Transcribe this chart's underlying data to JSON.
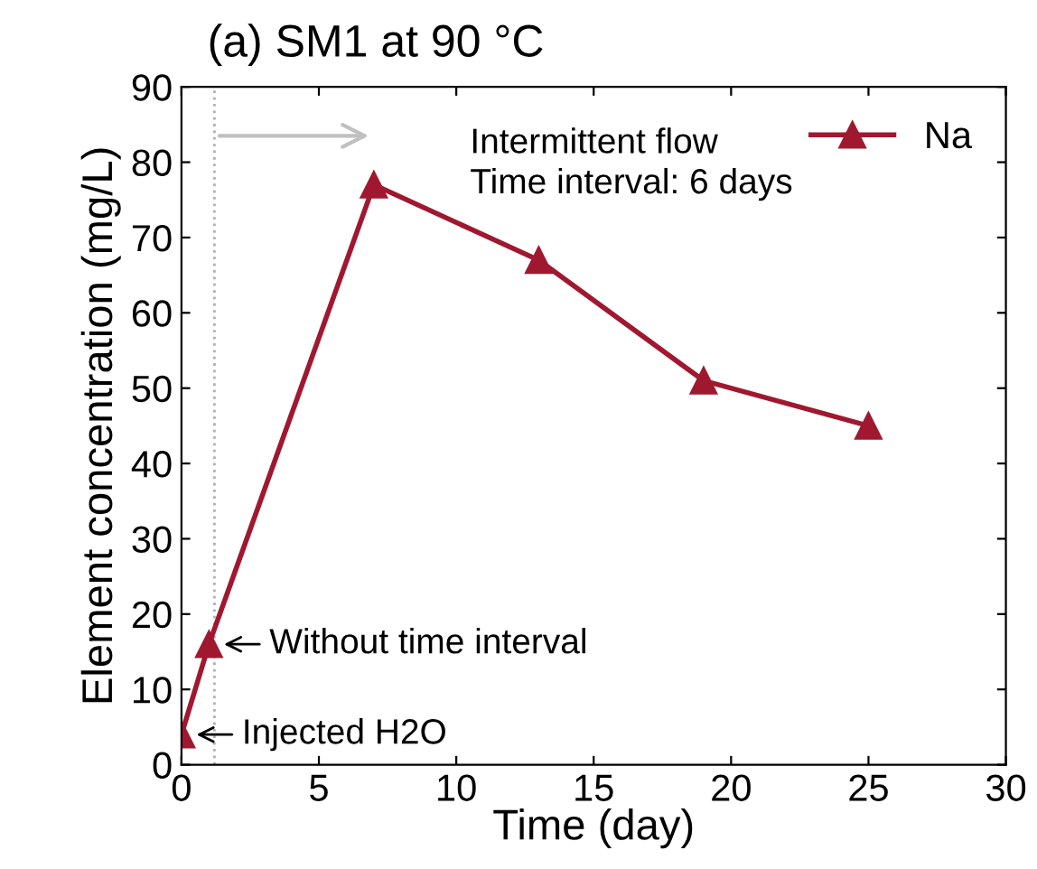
{
  "chart_data": {
    "type": "line",
    "title": "(a) SM1 at 90 °C",
    "xlabel": "Time (day)",
    "ylabel": "Element concentration (mg/L)",
    "x": [
      0,
      1,
      7,
      13,
      19,
      25
    ],
    "series": [
      {
        "name": "Na",
        "color": "#a01830",
        "values": [
          4,
          16,
          77,
          67,
          51,
          45
        ]
      }
    ],
    "xlim": [
      0,
      30
    ],
    "xticks": [
      0,
      5,
      10,
      15,
      20,
      25,
      30
    ],
    "ylim": [
      0,
      90
    ],
    "yticks": [
      0,
      10,
      20,
      30,
      40,
      50,
      60,
      70,
      80,
      90
    ],
    "marker": "triangle",
    "line_style": "solid",
    "legend": "top right",
    "grid": false,
    "ref_lines": [
      {
        "axis": "x",
        "value": 1.2,
        "color": "#b0b0b0",
        "line_style": "dotted"
      }
    ],
    "annotations": [
      "Intermittent flow\nTime interval: 6 days",
      {
        "text": "Without time interval",
        "x": 1,
        "y": 16
      },
      {
        "text": "Injected H2O",
        "x": 0,
        "y": 4
      }
    ]
  }
}
